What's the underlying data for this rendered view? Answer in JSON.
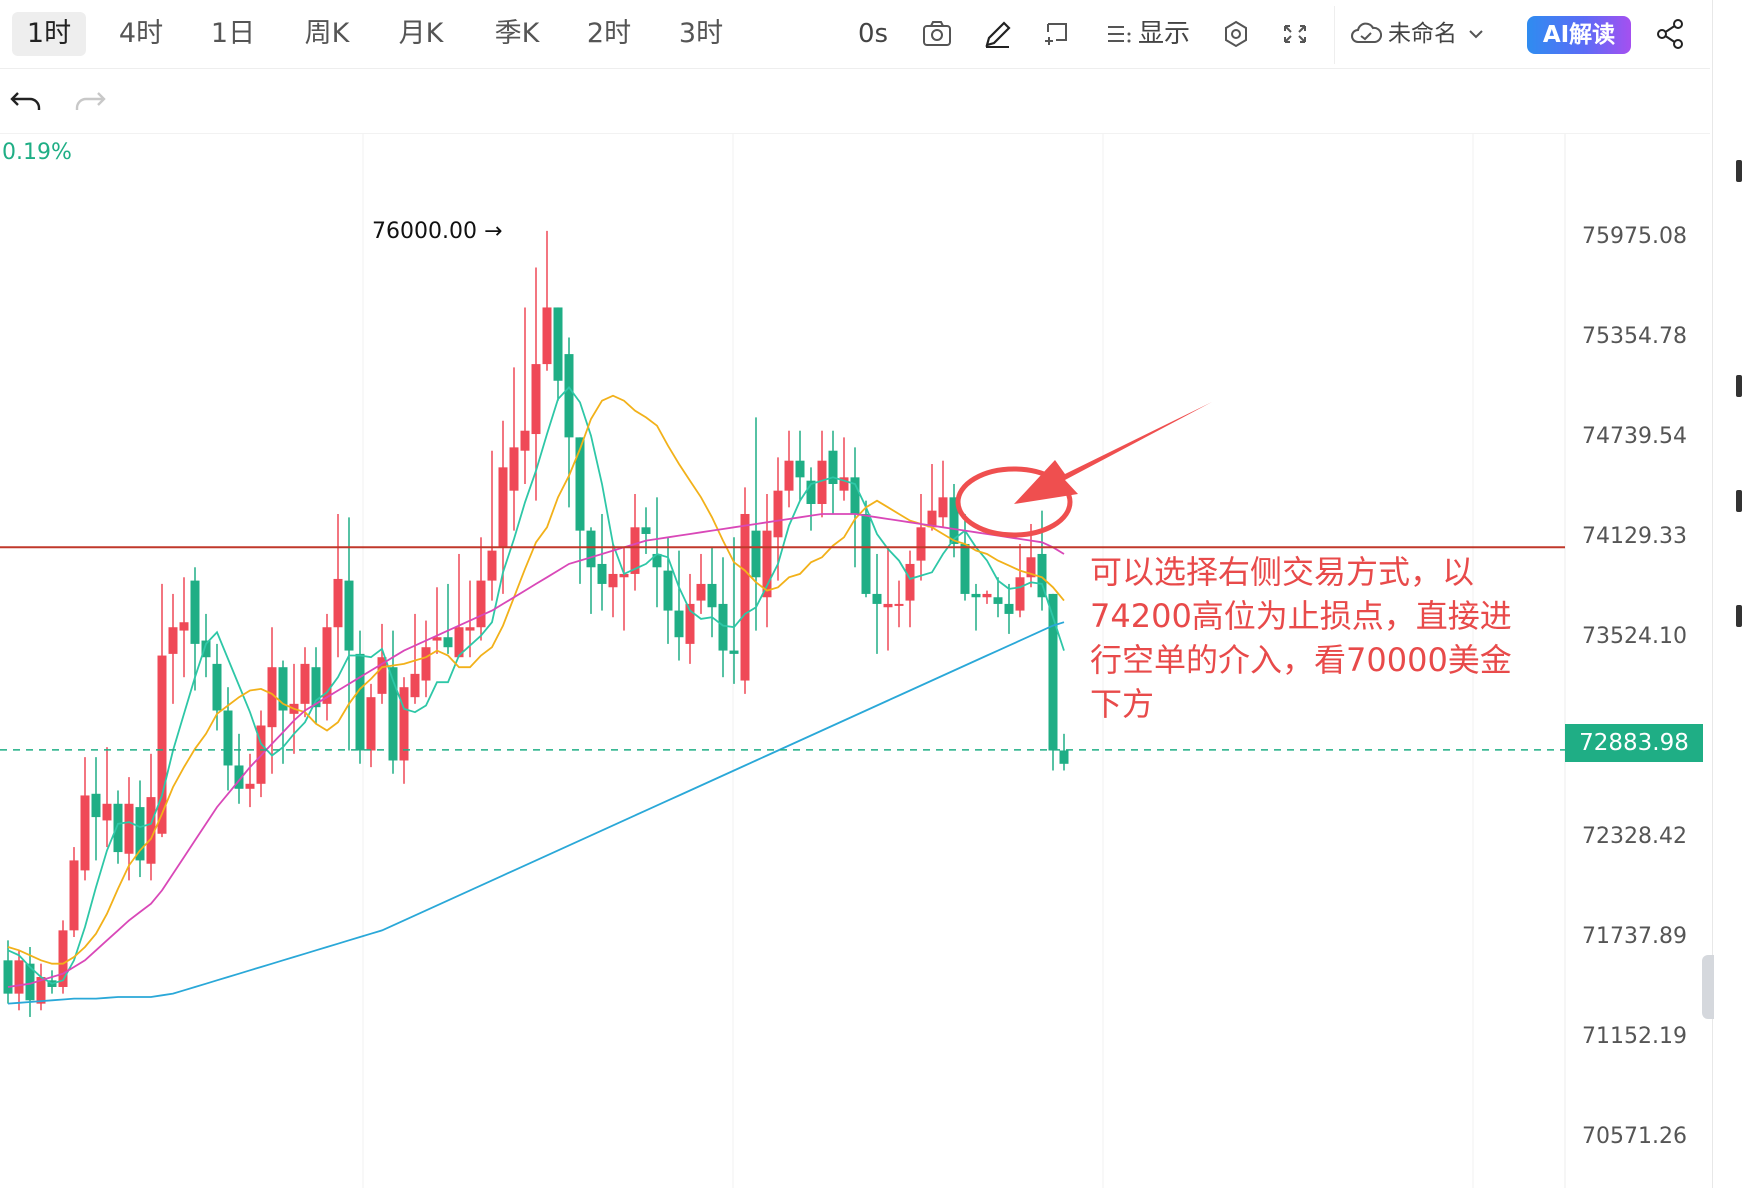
{
  "toolbar": {
    "timeframes": [
      "1时",
      "4时",
      "1日",
      "周K",
      "月K",
      "季K",
      "2时",
      "3时"
    ],
    "active_timeframe": "1时",
    "refresh_interval": "0s",
    "display_label": "显示",
    "layout_name": "未命名",
    "ai_button": "AI解读"
  },
  "chart": {
    "change_pct": "0.19%",
    "high_marker": "76000.00 →",
    "current_price_tag": "72883.98",
    "y_axis_labels": [
      "75975.08",
      "75354.78",
      "74739.54",
      "74129.33",
      "73524.10",
      "72883.98",
      "72328.42",
      "71737.89",
      "71152.19",
      "70571.26"
    ],
    "annotation_text": "可以选择右侧交易方式，以\n74200高位为止损点，直接进\n行空单的介入，看70000美金\n下方",
    "colors": {
      "up": "#ef4957",
      "down": "#1fae85",
      "ma5": "#2ec7a7",
      "ma10": "#f2b11a",
      "ma20": "#d948b8",
      "ma60": "#2aa8d8",
      "annotation": "#e84a4a"
    }
  },
  "chart_data": {
    "type": "candlestick",
    "ylim": [
      70300,
      76500
    ],
    "support_level": 74100,
    "current_price": 72883.98,
    "candles": [
      [
        71620,
        71420,
        71740,
        71360
      ],
      [
        71420,
        71620,
        71680,
        71320
      ],
      [
        71600,
        71380,
        71700,
        71280
      ],
      [
        71360,
        71520,
        71600,
        71320
      ],
      [
        71500,
        71460,
        71560,
        71420
      ],
      [
        71460,
        71800,
        71860,
        71420
      ],
      [
        71800,
        72220,
        72300,
        71760
      ],
      [
        72160,
        72610,
        72840,
        72100
      ],
      [
        72620,
        72480,
        72840,
        72220
      ],
      [
        72460,
        72560,
        72900,
        72300
      ],
      [
        72560,
        72270,
        72640,
        72200
      ],
      [
        72260,
        72560,
        72720,
        72100
      ],
      [
        72540,
        72220,
        72700,
        72120
      ],
      [
        72200,
        72600,
        72860,
        72100
      ],
      [
        72380,
        73450,
        73880,
        72360
      ],
      [
        73460,
        73620,
        73820,
        73160
      ],
      [
        73600,
        73650,
        73920,
        73320
      ],
      [
        73900,
        73520,
        73980,
        73240
      ],
      [
        73540,
        73440,
        73700,
        73320
      ],
      [
        73400,
        73120,
        73520,
        73000
      ],
      [
        73120,
        72790,
        73260,
        72640
      ],
      [
        72790,
        72650,
        72980,
        72560
      ],
      [
        72650,
        72680,
        72860,
        72540
      ],
      [
        72680,
        73030,
        73120,
        72600
      ],
      [
        73020,
        73380,
        73620,
        72740
      ],
      [
        73380,
        73120,
        73420,
        72800
      ],
      [
        73100,
        73160,
        73400,
        72860
      ],
      [
        73160,
        73400,
        73500,
        73080
      ],
      [
        73380,
        73140,
        73500,
        73040
      ],
      [
        73160,
        73620,
        73700,
        73060
      ],
      [
        73620,
        73910,
        74300,
        73440
      ],
      [
        73900,
        73480,
        74280,
        72880
      ],
      [
        73460,
        72880,
        73600,
        72800
      ],
      [
        72880,
        73200,
        73280,
        72780
      ],
      [
        73220,
        73440,
        73640,
        73160
      ],
      [
        73380,
        72820,
        73600,
        72740
      ],
      [
        72820,
        73260,
        73320,
        72680
      ],
      [
        73200,
        73340,
        73700,
        73160
      ],
      [
        73300,
        73500,
        73660,
        73200
      ],
      [
        73540,
        73560,
        73860,
        73460
      ],
      [
        73560,
        73500,
        73880,
        73460
      ],
      [
        73440,
        73620,
        74060,
        73440
      ],
      [
        73600,
        73620,
        73900,
        73440
      ],
      [
        73620,
        73900,
        74160,
        73540
      ],
      [
        73900,
        74080,
        74680,
        73780
      ],
      [
        74100,
        74580,
        74860,
        73820
      ],
      [
        74440,
        74700,
        75180,
        74200
      ],
      [
        74680,
        74800,
        75540,
        74480
      ],
      [
        74780,
        75200,
        75780,
        74380
      ],
      [
        75200,
        75540,
        76000,
        75160
      ],
      [
        75540,
        75100,
        75540,
        74980
      ],
      [
        75260,
        74760,
        75360,
        74340
      ],
      [
        74760,
        74200,
        74760,
        73880
      ],
      [
        74200,
        73980,
        74220,
        73700
      ],
      [
        74000,
        73880,
        74300,
        73720
      ],
      [
        73860,
        73940,
        74120,
        73680
      ],
      [
        73920,
        73940,
        74100,
        73600
      ],
      [
        73940,
        74220,
        74420,
        73840
      ],
      [
        74220,
        74180,
        74340,
        74060
      ],
      [
        74060,
        73980,
        74400,
        73740
      ],
      [
        73960,
        73720,
        74160,
        73520
      ],
      [
        73720,
        73560,
        74080,
        73420
      ],
      [
        73520,
        73760,
        73940,
        73400
      ],
      [
        73780,
        73880,
        74060,
        73700
      ],
      [
        73880,
        73740,
        74100,
        73560
      ],
      [
        73760,
        73480,
        74040,
        73320
      ],
      [
        73480,
        73460,
        74160,
        73280
      ],
      [
        73300,
        74300,
        74460,
        73220
      ],
      [
        74200,
        73920,
        74880,
        73600
      ],
      [
        73800,
        74200,
        74420,
        73620
      ],
      [
        74160,
        74440,
        74640,
        73900
      ],
      [
        74440,
        74620,
        74800,
        74340
      ],
      [
        74620,
        74520,
        74800,
        74380
      ],
      [
        74500,
        74360,
        74580,
        74200
      ],
      [
        74360,
        74620,
        74800,
        74280
      ],
      [
        74680,
        74480,
        74800,
        74300
      ],
      [
        74440,
        74520,
        74760,
        74380
      ],
      [
        74520,
        74300,
        74700,
        73980
      ],
      [
        74300,
        73820,
        74380,
        73800
      ],
      [
        73820,
        73760,
        74060,
        73460
      ],
      [
        73740,
        73760,
        74100,
        73480
      ],
      [
        73760,
        73760,
        73900,
        73620
      ],
      [
        73780,
        74000,
        74080,
        73620
      ],
      [
        74020,
        74220,
        74420,
        73900
      ],
      [
        74220,
        74320,
        74600,
        74200
      ],
      [
        74280,
        74400,
        74620,
        74220
      ],
      [
        74400,
        74120,
        74480,
        74040
      ],
      [
        74120,
        73820,
        74300,
        73780
      ],
      [
        73820,
        73800,
        73880,
        73600
      ],
      [
        73800,
        73820,
        73840,
        73760
      ],
      [
        73800,
        73760,
        73920,
        73680
      ],
      [
        73760,
        73700,
        73880,
        73580
      ],
      [
        73720,
        73920,
        74120,
        73680
      ],
      [
        73920,
        74040,
        74240,
        73860
      ],
      [
        74060,
        73800,
        74320,
        73720
      ],
      [
        73820,
        72880,
        73820,
        72760
      ],
      [
        72880,
        72800,
        72980,
        72760
      ]
    ],
    "ma_series": [
      {
        "period": "5",
        "values": [
          71680,
          71650,
          71580,
          71520,
          71480,
          71500,
          71620,
          71820,
          72060,
          72280,
          72440,
          72450,
          72420,
          72440,
          72610,
          72880,
          73100,
          73320,
          73520,
          73590,
          73430,
          73270,
          73110,
          72920,
          72850,
          72900,
          72980,
          73050,
          73180,
          73230,
          73320,
          73450,
          73450,
          73440,
          73490,
          73300,
          73130,
          73110,
          73150,
          73290,
          73290,
          73450,
          73510,
          73570,
          73650,
          73950,
          74150,
          74370,
          74560,
          74780,
          74990,
          75060,
          74970,
          74770,
          74480,
          74120,
          73940,
          73970,
          74000,
          74060,
          74040,
          73860,
          73720,
          73670,
          73680,
          73630,
          73620,
          73700,
          73740,
          73870,
          74000,
          74230,
          74380,
          74480,
          74500,
          74520,
          74500,
          74480,
          74340,
          74180,
          74090,
          74020,
          73910,
          73930,
          73950,
          74060,
          74150,
          74200,
          74100,
          74020,
          73900,
          73850,
          73860,
          73890,
          73880,
          73680,
          73480
        ]
      },
      {
        "period": "10",
        "values": [
          71700,
          71680,
          71650,
          71620,
          71600,
          71600,
          71640,
          71700,
          71780,
          71900,
          72050,
          72190,
          72280,
          72350,
          72500,
          72660,
          72780,
          72890,
          72980,
          73100,
          73150,
          73200,
          73240,
          73250,
          73220,
          73160,
          73130,
          73110,
          73040,
          73000,
          73050,
          73160,
          73250,
          73310,
          73380,
          73390,
          73400,
          73420,
          73440,
          73480,
          73450,
          73380,
          73380,
          73450,
          73500,
          73630,
          73800,
          73970,
          74130,
          74220,
          74400,
          74530,
          74690,
          74870,
          74980,
          75010,
          74980,
          74920,
          74880,
          74830,
          74710,
          74600,
          74500,
          74400,
          74280,
          74140,
          74010,
          73960,
          73890,
          73840,
          73860,
          73920,
          73940,
          74010,
          74040,
          74110,
          74160,
          74270,
          74340,
          74380,
          74340,
          74300,
          74260,
          74240,
          74220,
          74180,
          74140,
          74120,
          74080,
          74060,
          74020,
          73990,
          73960,
          73940,
          73920,
          73860,
          73780
        ]
      },
      {
        "period": "20",
        "values": [
          71460,
          71470,
          71480,
          71500,
          71520,
          71540,
          71580,
          71620,
          71680,
          71740,
          71800,
          71860,
          71910,
          71960,
          72040,
          72140,
          72240,
          72340,
          72440,
          72540,
          72620,
          72700,
          72780,
          72850,
          72920,
          72990,
          73060,
          73120,
          73160,
          73200,
          73240,
          73280,
          73320,
          73360,
          73400,
          73440,
          73480,
          73510,
          73540,
          73570,
          73600,
          73630,
          73660,
          73690,
          73720,
          73760,
          73800,
          73840,
          73880,
          73920,
          73960,
          74000,
          74020,
          74040,
          74060,
          74080,
          74100,
          74120,
          74140,
          74150,
          74160,
          74170,
          74180,
          74190,
          74200,
          74210,
          74220,
          74230,
          74240,
          74250,
          74260,
          74270,
          74280,
          74290,
          74300,
          74300,
          74300,
          74300,
          74290,
          74280,
          74270,
          74260,
          74250,
          74240,
          74230,
          74220,
          74210,
          74200,
          74190,
          74180,
          74170,
          74160,
          74150,
          74140,
          74130,
          74100,
          74060
        ]
      },
      {
        "period": "60",
        "values": [
          71360,
          71365,
          71370,
          71375,
          71380,
          71385,
          71390,
          71390,
          71390,
          71395,
          71400,
          71400,
          71400,
          71400,
          71410,
          71420,
          71440,
          71460,
          71480,
          71500,
          71520,
          71540,
          71560,
          71580,
          71600,
          71620,
          71640,
          71660,
          71680,
          71700,
          71720,
          71740,
          71760,
          71780,
          71800,
          71830,
          71860,
          71890,
          71920,
          71950,
          71980,
          72010,
          72040,
          72070,
          72100,
          72130,
          72160,
          72190,
          72220,
          72250,
          72280,
          72310,
          72340,
          72370,
          72400,
          72430,
          72460,
          72490,
          72520,
          72550,
          72580,
          72610,
          72640,
          72670,
          72700,
          72730,
          72760,
          72790,
          72820,
          72850,
          72880,
          72910,
          72940,
          72970,
          73000,
          73030,
          73060,
          73090,
          73120,
          73150,
          73180,
          73210,
          73240,
          73270,
          73300,
          73330,
          73360,
          73390,
          73420,
          73450,
          73480,
          73510,
          73540,
          73570,
          73600,
          73630,
          73650
        ]
      }
    ]
  }
}
